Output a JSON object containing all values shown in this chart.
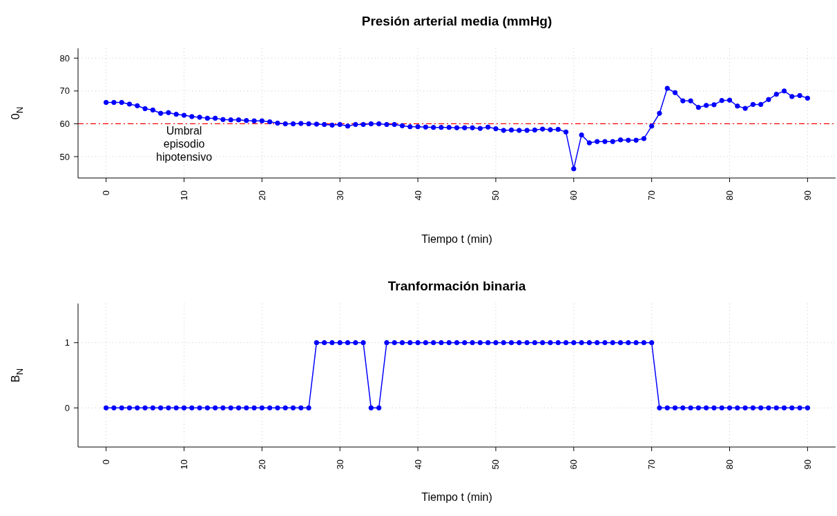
{
  "chart_data": [
    {
      "type": "line",
      "title": "Presión arterial media (mmHg)",
      "xlabel": "Tiempo t (min)",
      "ylabel": "0$_{N}$",
      "x": [
        0,
        1,
        2,
        3,
        4,
        5,
        6,
        7,
        8,
        9,
        10,
        11,
        12,
        13,
        14,
        15,
        16,
        17,
        18,
        19,
        20,
        21,
        22,
        23,
        24,
        25,
        26,
        27,
        28,
        29,
        30,
        31,
        32,
        33,
        34,
        35,
        36,
        37,
        38,
        39,
        40,
        41,
        42,
        43,
        44,
        45,
        46,
        47,
        48,
        49,
        50,
        51,
        52,
        53,
        54,
        55,
        56,
        57,
        58,
        59,
        60,
        61,
        62,
        63,
        64,
        65,
        66,
        67,
        68,
        69,
        70,
        71,
        72,
        73,
        74,
        75,
        76,
        77,
        78,
        79,
        80,
        81,
        82,
        83,
        84,
        85,
        86,
        87,
        88,
        89,
        90
      ],
      "series": [
        {
          "color": "#0000ff",
          "values": [
            66.5,
            66.5,
            66.5,
            66,
            65.5,
            64.6,
            64.2,
            63.2,
            63.4,
            62.9,
            62.6,
            62.2,
            62,
            61.7,
            61.7,
            61.3,
            61.2,
            61.2,
            61,
            60.9,
            60.9,
            60.6,
            60.2,
            60,
            60,
            60.1,
            60,
            59.9,
            59.8,
            59.6,
            59.8,
            59.3,
            59.8,
            59.8,
            60,
            60,
            59.8,
            59.8,
            59.4,
            59.1,
            59.1,
            59,
            58.9,
            58.9,
            58.9,
            58.8,
            58.8,
            58.8,
            58.6,
            59,
            58.5,
            58,
            58.1,
            58,
            58,
            58.1,
            58.4,
            58.2,
            58.3,
            57.5,
            46.3,
            56.6,
            54.2,
            54.6,
            54.6,
            54.6,
            55.1,
            55,
            55,
            55.5,
            59.3,
            63.2,
            70.8,
            69.5,
            67,
            67,
            65,
            65.6,
            65.8,
            67.1,
            67.2,
            65.4,
            64.7,
            65.9,
            65.9,
            67.4,
            69,
            70,
            68.3,
            68.6,
            67.8
          ]
        }
      ],
      "xlim": [
        -3.6,
        93.6
      ],
      "xticks": [
        0,
        10,
        20,
        30,
        40,
        50,
        60,
        70,
        80,
        90
      ],
      "ylim": [
        43.5,
        83
      ],
      "yticks": [
        50,
        60,
        70,
        80
      ],
      "ref_lines": [
        {
          "axis": "y",
          "value": 60,
          "label": "Umbral episodio hipotensivo",
          "color": "#ff0000",
          "line_style": "dashdot"
        }
      ],
      "grid": true,
      "marker": "circle",
      "line_style": "solid"
    },
    {
      "type": "line",
      "title": "Tranformación binaria",
      "xlabel": "Tiempo t (min)",
      "ylabel": "B$_{N}$",
      "x": [
        0,
        1,
        2,
        3,
        4,
        5,
        6,
        7,
        8,
        9,
        10,
        11,
        12,
        13,
        14,
        15,
        16,
        17,
        18,
        19,
        20,
        21,
        22,
        23,
        24,
        25,
        26,
        27,
        28,
        29,
        30,
        31,
        32,
        33,
        34,
        35,
        36,
        37,
        38,
        39,
        40,
        41,
        42,
        43,
        44,
        45,
        46,
        47,
        48,
        49,
        50,
        51,
        52,
        53,
        54,
        55,
        56,
        57,
        58,
        59,
        60,
        61,
        62,
        63,
        64,
        65,
        66,
        67,
        68,
        69,
        70,
        71,
        72,
        73,
        74,
        75,
        76,
        77,
        78,
        79,
        80,
        81,
        82,
        83,
        84,
        85,
        86,
        87,
        88,
        89,
        90
      ],
      "series": [
        {
          "color": "#0000ff",
          "values": [
            0,
            0,
            0,
            0,
            0,
            0,
            0,
            0,
            0,
            0,
            0,
            0,
            0,
            0,
            0,
            0,
            0,
            0,
            0,
            0,
            0,
            0,
            0,
            0,
            0,
            0,
            0,
            1,
            1,
            1,
            1,
            1,
            1,
            1,
            0,
            0,
            1,
            1,
            1,
            1,
            1,
            1,
            1,
            1,
            1,
            1,
            1,
            1,
            1,
            1,
            1,
            1,
            1,
            1,
            1,
            1,
            1,
            1,
            1,
            1,
            1,
            1,
            1,
            1,
            1,
            1,
            1,
            1,
            1,
            1,
            1,
            0,
            0,
            0,
            0,
            0,
            0,
            0,
            0,
            0,
            0,
            0,
            0,
            0,
            0,
            0,
            0,
            0,
            0,
            0,
            0
          ]
        }
      ],
      "xlim": [
        -3.6,
        93.6
      ],
      "xticks": [
        0,
        10,
        20,
        30,
        40,
        50,
        60,
        70,
        80,
        90
      ],
      "ylim": [
        -0.6,
        1.6
      ],
      "yticks": [
        0,
        1
      ],
      "grid": true,
      "marker": "circle",
      "line_style": "solid"
    }
  ]
}
